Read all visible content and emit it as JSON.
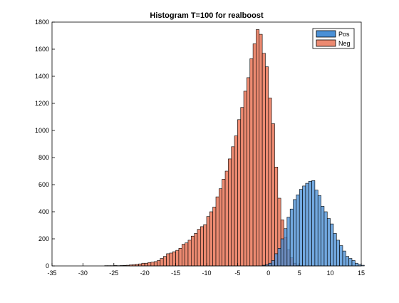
{
  "chart_data": {
    "type": "bar",
    "title": "Histogram T=100 for realboost",
    "xlabel": "",
    "ylabel": "",
    "xlim": [
      -35,
      15
    ],
    "ylim": [
      0,
      1800
    ],
    "xticks": [
      -35,
      -30,
      -25,
      -20,
      -15,
      -10,
      -5,
      0,
      5,
      10,
      15
    ],
    "yticks": [
      0,
      200,
      400,
      600,
      800,
      1000,
      1200,
      1400,
      1600,
      1800
    ],
    "grid": false,
    "legend_position": "top-right",
    "bin_width": 0.5,
    "series": [
      {
        "name": "Neg",
        "color": "#EC8A71",
        "x_start": -26.5,
        "values": [
          2,
          2,
          2,
          3,
          2,
          3,
          4,
          5,
          8,
          10,
          12,
          15,
          20,
          20,
          25,
          28,
          32,
          40,
          55,
          70,
          90,
          95,
          105,
          115,
          130,
          160,
          170,
          190,
          220,
          240,
          270,
          290,
          305,
          365,
          400,
          435,
          510,
          570,
          640,
          700,
          790,
          880,
          960,
          1080,
          1170,
          1290,
          1390,
          1530,
          1640,
          1745,
          1710,
          1570,
          1470,
          1240,
          1050,
          730,
          500,
          340,
          210,
          120,
          60,
          20,
          5,
          2
        ]
      },
      {
        "name": "Pos",
        "color": "#4A90D6",
        "x_start": -1.0,
        "values": [
          5,
          10,
          20,
          40,
          90,
          130,
          200,
          275,
          360,
          420,
          490,
          525,
          565,
          590,
          610,
          625,
          630,
          560,
          520,
          440,
          400,
          350,
          310,
          240,
          190,
          150,
          110,
          70,
          55,
          40,
          20,
          10,
          5
        ]
      }
    ]
  }
}
